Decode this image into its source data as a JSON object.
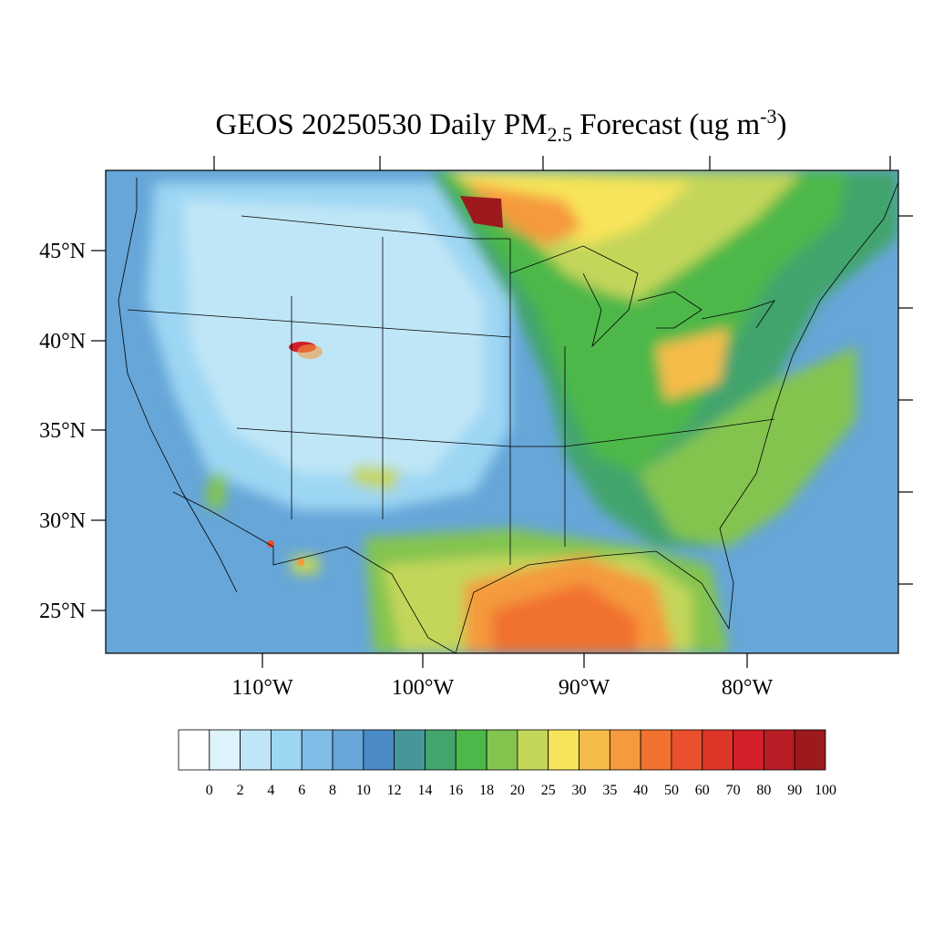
{
  "map": {
    "title": {
      "main": "GEOS 20250530 Daily PM",
      "sub": "2.5",
      "mid": " Forecast (ug m",
      "sup": "-3",
      "end": ")"
    },
    "lat_labels": [
      "45°N",
      "40°N",
      "35°N",
      "30°N",
      "25°N"
    ],
    "lon_labels": [
      "110°W",
      "100°W",
      "90°W",
      "80°W"
    ],
    "colorbar": {
      "colors": [
        "#ffffff",
        "#ddf2fb",
        "#bfe6f7",
        "#9dd6f3",
        "#7fbde6",
        "#66a6d8",
        "#4a8ac6",
        "#47979a",
        "#43a46d",
        "#4db84a",
        "#83c44f",
        "#c3d65a",
        "#f8e45a",
        "#f6bc4a",
        "#f59a3e",
        "#f1712f",
        "#e9502d",
        "#de3628",
        "#d21f2a",
        "#b81c25",
        "#9c1a1c"
      ],
      "labels": [
        0,
        2,
        4,
        6,
        8,
        10,
        12,
        14,
        16,
        18,
        20,
        25,
        30,
        35,
        40,
        50,
        60,
        70,
        80,
        90,
        100
      ]
    }
  }
}
